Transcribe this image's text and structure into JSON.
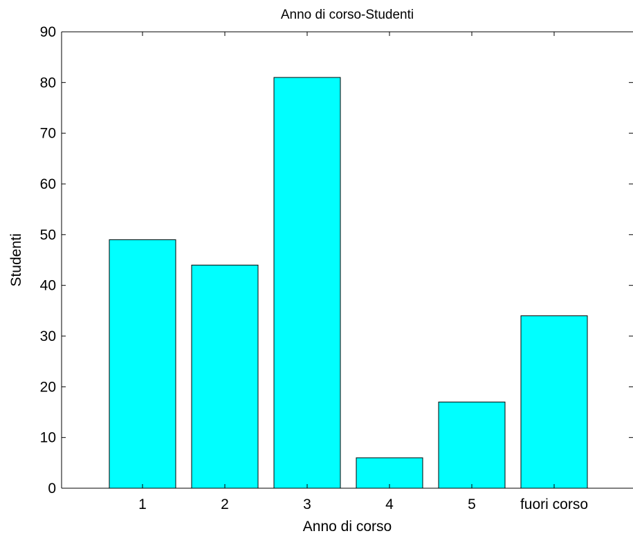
{
  "chart_data": {
    "type": "bar",
    "title": "Anno di corso-Studenti",
    "xlabel": "Anno di corso",
    "ylabel": "Studenti",
    "categories": [
      "1",
      "2",
      "3",
      "4",
      "5",
      "fuori corso"
    ],
    "values": [
      49,
      44,
      81,
      6,
      17,
      34
    ],
    "ylim": [
      0,
      90
    ],
    "yticks": [
      0,
      10,
      20,
      30,
      40,
      50,
      60,
      70,
      80,
      90
    ],
    "grid": false,
    "legend": "none",
    "colors": {
      "bar_fill": "#00ffff",
      "bar_edge": "#000000"
    }
  }
}
